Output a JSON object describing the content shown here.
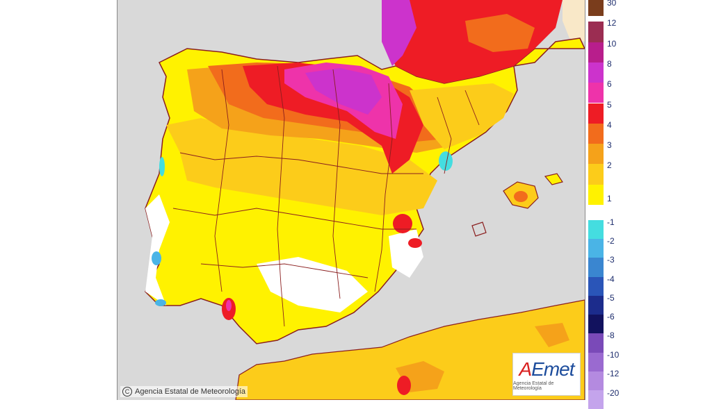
{
  "copyright": "Agencia Estatal de Meteorología",
  "logo": {
    "a": "A",
    "word": "Emet",
    "subtitle": "Agencia Estatal de Meteorología"
  },
  "legend": {
    "labels": [
      "30",
      "12",
      "10",
      "8",
      "6",
      "5",
      "4",
      "3",
      "2",
      "1",
      "-1",
      "-2",
      "-3",
      "-4",
      "-5",
      "-6",
      "-8",
      "-10",
      "-12",
      "-20"
    ],
    "warm_colors": [
      "#7a3d1c",
      "#9b2d52",
      "#b81e8c",
      "#cc33cc",
      "#ee33aa",
      "#ee1c25",
      "#f26c1c",
      "#f5a21a",
      "#fccc1a",
      "#fff200"
    ],
    "cold_colors": [
      "#44dde0",
      "#4ab4e6",
      "#3a86d0",
      "#2a55b8",
      "#1c2c8c",
      "#12125e",
      "#7a4ab8",
      "#9a6ad0",
      "#b48ae0",
      "#c4a4ec"
    ]
  },
  "colors": {
    "sea": "#d9d9d9",
    "border": "#8a1e1e",
    "white": "#ffffff",
    "yellow": "#fff200",
    "light_orange": "#fccc1a",
    "orange": "#f5a21a",
    "dark_orange": "#f26c1c",
    "red": "#ee1c25",
    "pink": "#ee33aa",
    "magenta": "#cc33cc",
    "cyan": "#44dde0",
    "blue": "#4ab4e6"
  }
}
